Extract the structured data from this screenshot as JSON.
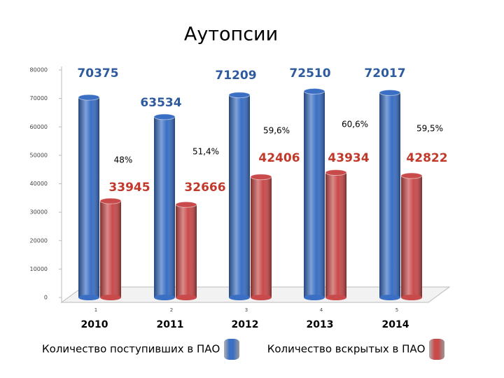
{
  "chart_data": {
    "type": "bar",
    "title": "Аутопсии",
    "categories": [
      "2010",
      "2011",
      "2012",
      "2013",
      "2014"
    ],
    "category_numbers": [
      1,
      2,
      3,
      4,
      5
    ],
    "series": [
      {
        "name": "Количество поступивших в ПАО",
        "color": "#3a6fc4",
        "label_color": "#2e5a9e",
        "values": [
          70375,
          63534,
          71209,
          72510,
          72017
        ]
      },
      {
        "name": "Количество вскрытых в ПАО",
        "color": "#c94a4a",
        "label_color": "#c0392b",
        "values": [
          33945,
          32666,
          42406,
          43934,
          42822
        ]
      }
    ],
    "ratios": {
      "values": [
        48,
        51.4,
        59.6,
        60.6,
        59.5
      ],
      "value_labels": [
        "48%",
        "51,4%",
        "59,6%",
        "60,6%",
        "59,5%"
      ]
    },
    "ylim": [
      0,
      80000
    ],
    "yticks": [
      0,
      10000,
      20000,
      30000,
      40000,
      50000,
      60000,
      70000,
      80000
    ],
    "grid": false
  }
}
